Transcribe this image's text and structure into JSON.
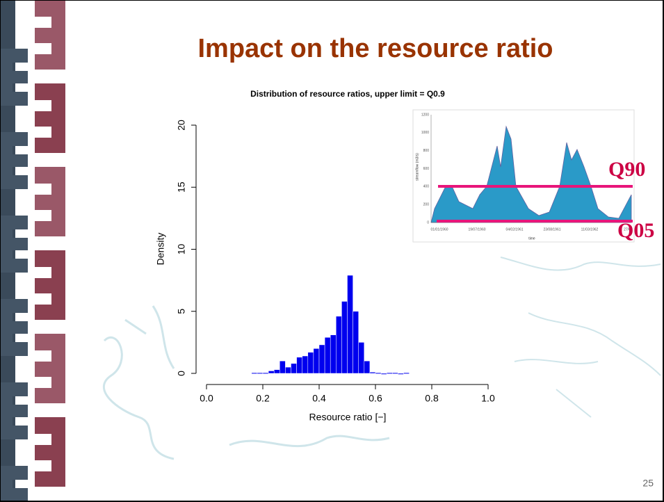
{
  "slide": {
    "title": "Impact on the resource ratio",
    "page_number": "25"
  },
  "inset": {
    "y_label": "streamflow (m3/s)",
    "x_label": "time",
    "yticks": [
      "1200",
      "1000",
      "800",
      "600",
      "400",
      "200",
      "0"
    ],
    "xticks": [
      "01/01/1960",
      "19/07/1960",
      "04/02/1961",
      "23/08/1961",
      "11/03/1962",
      "27/0"
    ],
    "upper_label": "Q90",
    "lower_label": "Q05"
  },
  "chart_data": {
    "type": "histogram",
    "title": "Distribution of resource ratios, upper limit = Q0.9",
    "x_label": "Resource ratio [−]",
    "y_label": "Density",
    "bins": [
      0.16,
      0.18,
      0.2,
      0.22,
      0.24,
      0.26,
      0.28,
      0.3,
      0.32,
      0.34,
      0.36,
      0.38,
      0.4,
      0.42,
      0.44,
      0.46,
      0.48,
      0.5,
      0.52,
      0.54,
      0.56,
      0.58,
      0.6,
      0.62,
      0.64,
      0.66,
      0.68,
      0.7,
      0.72
    ],
    "values": [
      0.05,
      0.05,
      0.05,
      0.2,
      0.3,
      1.0,
      0.5,
      0.8,
      1.3,
      1.4,
      1.7,
      2.0,
      2.3,
      2.9,
      3.1,
      4.6,
      5.8,
      7.9,
      5.0,
      2.5,
      1.0,
      0.1,
      0.05,
      0,
      0.05,
      0.05,
      0,
      0.05
    ],
    "color": "#0000ee",
    "xlim": [
      0,
      1
    ],
    "ylim": [
      0,
      20
    ],
    "xticks": [
      {
        "value": 0,
        "label": "0.0"
      },
      0.2,
      0.4,
      0.6,
      0.8,
      {
        "value": 1,
        "label": "1.0"
      }
    ],
    "yticks": [
      0,
      5,
      10,
      15,
      20
    ]
  }
}
